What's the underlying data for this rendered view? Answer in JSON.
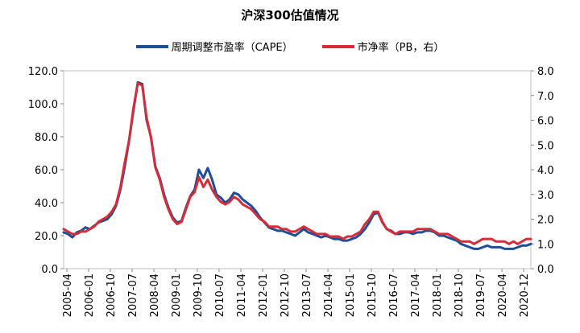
{
  "chart_data": {
    "type": "line",
    "title": "沪深300估值情况",
    "left_axis": {
      "range": [
        0,
        120
      ],
      "ticks": [
        "0.0",
        "20.0",
        "40.0",
        "60.0",
        "80.0",
        "100.0",
        "120.0"
      ]
    },
    "right_axis": {
      "range": [
        0,
        8
      ],
      "ticks": [
        "0.0",
        "1.0",
        "2.0",
        "3.0",
        "4.0",
        "5.0",
        "6.0",
        "7.0",
        "8.0"
      ]
    },
    "x_ticks": [
      "2005-04",
      "2006-01",
      "2006-10",
      "2007-07",
      "2008-04",
      "2009-01",
      "2009-10",
      "2010-07",
      "2011-04",
      "2012-01",
      "2012-10",
      "2013-07",
      "2014-04",
      "2015-01",
      "2015-10",
      "2016-07",
      "2017-04",
      "2018-01",
      "2018-10",
      "2019-07",
      "2020-04",
      "2020-12"
    ],
    "grid": false,
    "legend_position": "top",
    "series": [
      {
        "name": "周期调整市盈率（CAPE）",
        "axis": "left",
        "color": "#1f4e96",
        "points": [
          [
            0,
            22
          ],
          [
            1,
            21
          ],
          [
            2,
            19
          ],
          [
            3,
            22
          ],
          [
            4,
            23
          ],
          [
            5,
            25
          ],
          [
            6,
            24
          ],
          [
            7,
            26
          ],
          [
            8,
            28
          ],
          [
            9,
            29
          ],
          [
            10,
            30
          ],
          [
            11,
            33
          ],
          [
            12,
            38
          ],
          [
            13,
            48
          ],
          [
            14,
            62
          ],
          [
            15,
            78
          ],
          [
            16,
            96
          ],
          [
            17,
            113
          ],
          [
            18,
            112
          ],
          [
            19,
            90
          ],
          [
            20,
            80
          ],
          [
            21,
            62
          ],
          [
            22,
            55
          ],
          [
            23,
            45
          ],
          [
            24,
            37
          ],
          [
            25,
            31
          ],
          [
            26,
            28
          ],
          [
            27,
            29
          ],
          [
            28,
            37
          ],
          [
            29,
            44
          ],
          [
            30,
            48
          ],
          [
            31,
            60
          ],
          [
            32,
            55
          ],
          [
            33,
            61
          ],
          [
            34,
            54
          ],
          [
            35,
            45
          ],
          [
            36,
            43
          ],
          [
            37,
            40
          ],
          [
            38,
            42
          ],
          [
            39,
            46
          ],
          [
            40,
            45
          ],
          [
            41,
            42
          ],
          [
            42,
            40
          ],
          [
            43,
            38
          ],
          [
            44,
            35
          ],
          [
            45,
            31
          ],
          [
            46,
            28
          ],
          [
            47,
            25
          ],
          [
            48,
            24
          ],
          [
            49,
            23
          ],
          [
            50,
            23
          ],
          [
            51,
            22
          ],
          [
            52,
            21
          ],
          [
            53,
            20
          ],
          [
            54,
            22
          ],
          [
            55,
            24
          ],
          [
            56,
            22
          ],
          [
            57,
            21
          ],
          [
            58,
            20
          ],
          [
            59,
            19
          ],
          [
            60,
            20
          ],
          [
            61,
            19
          ],
          [
            62,
            18
          ],
          [
            63,
            18
          ],
          [
            64,
            17
          ],
          [
            65,
            17
          ],
          [
            66,
            18
          ],
          [
            67,
            19
          ],
          [
            68,
            21
          ],
          [
            69,
            24
          ],
          [
            70,
            28
          ],
          [
            71,
            33
          ],
          [
            72,
            34
          ],
          [
            73,
            28
          ],
          [
            74,
            24
          ],
          [
            75,
            23
          ],
          [
            76,
            21
          ],
          [
            77,
            21
          ],
          [
            78,
            22
          ],
          [
            79,
            22
          ],
          [
            80,
            21
          ],
          [
            81,
            22
          ],
          [
            82,
            22
          ],
          [
            83,
            23
          ],
          [
            84,
            23
          ],
          [
            85,
            22
          ],
          [
            86,
            20
          ],
          [
            87,
            20
          ],
          [
            88,
            19
          ],
          [
            89,
            18
          ],
          [
            90,
            17
          ],
          [
            91,
            15
          ],
          [
            92,
            14
          ],
          [
            93,
            13
          ],
          [
            94,
            12
          ],
          [
            95,
            12
          ],
          [
            96,
            13
          ],
          [
            97,
            14
          ],
          [
            98,
            13
          ],
          [
            99,
            13
          ],
          [
            100,
            13
          ],
          [
            101,
            12
          ],
          [
            102,
            12
          ],
          [
            103,
            12
          ],
          [
            104,
            13
          ],
          [
            105,
            14
          ],
          [
            106,
            14
          ],
          [
            107,
            15
          ]
        ]
      },
      {
        "name": "市净率（PB，右）",
        "axis": "right",
        "color": "#d62c3a",
        "points": [
          [
            0,
            1.6
          ],
          [
            1,
            1.5
          ],
          [
            2,
            1.4
          ],
          [
            3,
            1.4
          ],
          [
            4,
            1.5
          ],
          [
            5,
            1.5
          ],
          [
            6,
            1.6
          ],
          [
            7,
            1.7
          ],
          [
            8,
            1.9
          ],
          [
            9,
            2.0
          ],
          [
            10,
            2.1
          ],
          [
            11,
            2.3
          ],
          [
            12,
            2.6
          ],
          [
            13,
            3.3
          ],
          [
            14,
            4.3
          ],
          [
            15,
            5.2
          ],
          [
            16,
            6.5
          ],
          [
            17,
            7.5
          ],
          [
            18,
            7.4
          ],
          [
            19,
            6.1
          ],
          [
            20,
            5.3
          ],
          [
            21,
            4.1
          ],
          [
            22,
            3.6
          ],
          [
            23,
            2.9
          ],
          [
            24,
            2.4
          ],
          [
            25,
            2.0
          ],
          [
            26,
            1.8
          ],
          [
            27,
            1.9
          ],
          [
            28,
            2.4
          ],
          [
            29,
            2.9
          ],
          [
            30,
            3.1
          ],
          [
            31,
            3.7
          ],
          [
            32,
            3.3
          ],
          [
            33,
            3.6
          ],
          [
            34,
            3.2
          ],
          [
            35,
            2.9
          ],
          [
            36,
            2.7
          ],
          [
            37,
            2.6
          ],
          [
            38,
            2.7
          ],
          [
            39,
            2.9
          ],
          [
            40,
            2.8
          ],
          [
            41,
            2.6
          ],
          [
            42,
            2.5
          ],
          [
            43,
            2.4
          ],
          [
            44,
            2.2
          ],
          [
            45,
            2.0
          ],
          [
            46,
            1.9
          ],
          [
            47,
            1.7
          ],
          [
            48,
            1.7
          ],
          [
            49,
            1.7
          ],
          [
            50,
            1.6
          ],
          [
            51,
            1.6
          ],
          [
            52,
            1.5
          ],
          [
            53,
            1.5
          ],
          [
            54,
            1.6
          ],
          [
            55,
            1.7
          ],
          [
            56,
            1.6
          ],
          [
            57,
            1.5
          ],
          [
            58,
            1.4
          ],
          [
            59,
            1.4
          ],
          [
            60,
            1.4
          ],
          [
            61,
            1.3
          ],
          [
            62,
            1.3
          ],
          [
            63,
            1.3
          ],
          [
            64,
            1.2
          ],
          [
            65,
            1.3
          ],
          [
            66,
            1.3
          ],
          [
            67,
            1.4
          ],
          [
            68,
            1.5
          ],
          [
            69,
            1.8
          ],
          [
            70,
            2.0
          ],
          [
            71,
            2.3
          ],
          [
            72,
            2.3
          ],
          [
            73,
            1.9
          ],
          [
            74,
            1.6
          ],
          [
            75,
            1.5
          ],
          [
            76,
            1.4
          ],
          [
            77,
            1.5
          ],
          [
            78,
            1.5
          ],
          [
            79,
            1.5
          ],
          [
            80,
            1.5
          ],
          [
            81,
            1.6
          ],
          [
            82,
            1.6
          ],
          [
            83,
            1.6
          ],
          [
            84,
            1.6
          ],
          [
            85,
            1.5
          ],
          [
            86,
            1.4
          ],
          [
            87,
            1.4
          ],
          [
            88,
            1.4
          ],
          [
            89,
            1.3
          ],
          [
            90,
            1.2
          ],
          [
            91,
            1.1
          ],
          [
            92,
            1.1
          ],
          [
            93,
            1.1
          ],
          [
            94,
            1.0
          ],
          [
            95,
            1.1
          ],
          [
            96,
            1.2
          ],
          [
            97,
            1.2
          ],
          [
            98,
            1.2
          ],
          [
            99,
            1.1
          ],
          [
            100,
            1.1
          ],
          [
            101,
            1.1
          ],
          [
            102,
            1.0
          ],
          [
            103,
            1.1
          ],
          [
            104,
            1.0
          ],
          [
            105,
            1.1
          ],
          [
            106,
            1.2
          ],
          [
            107,
            1.2
          ]
        ]
      }
    ]
  }
}
